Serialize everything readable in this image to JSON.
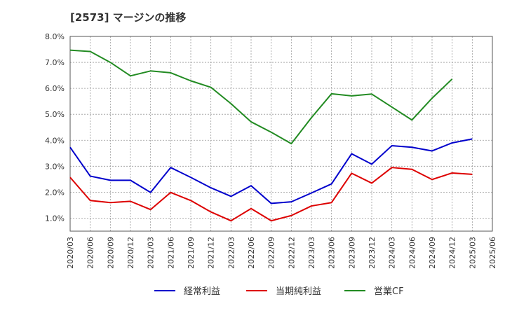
{
  "chart_data": {
    "type": "line",
    "title": "[2573]  マージンの推移",
    "xlabel": "",
    "ylabel": "",
    "ylim": [
      0.5,
      8.0
    ],
    "y_ticks": [
      "1.0%",
      "2.0%",
      "3.0%",
      "4.0%",
      "5.0%",
      "6.0%",
      "7.0%",
      "8.0%"
    ],
    "x": [
      "2020/03",
      "2020/06",
      "2020/09",
      "2020/12",
      "2021/03",
      "2021/06",
      "2021/09",
      "2021/12",
      "2022/03",
      "2022/06",
      "2022/09",
      "2022/12",
      "2023/03",
      "2023/06",
      "2023/09",
      "2023/12",
      "2024/03",
      "2024/06",
      "2024/09",
      "2024/12",
      "2025/03",
      "2025/06"
    ],
    "grid": true,
    "legend_position": "bottom",
    "series": [
      {
        "name": "経常利益",
        "color": "#0000cc",
        "values": [
          3.73,
          2.62,
          2.46,
          2.46,
          1.99,
          2.95,
          2.57,
          2.17,
          1.84,
          2.25,
          1.57,
          1.63,
          1.97,
          2.32,
          3.48,
          3.08,
          3.79,
          3.73,
          3.59,
          3.9,
          4.05,
          null
        ]
      },
      {
        "name": "当期純利益",
        "color": "#dd0000",
        "values": [
          2.57,
          1.68,
          1.6,
          1.65,
          1.33,
          1.99,
          1.68,
          1.24,
          0.9,
          1.37,
          0.9,
          1.1,
          1.47,
          1.6,
          2.73,
          2.35,
          2.95,
          2.88,
          2.49,
          2.74,
          2.69,
          null
        ]
      },
      {
        "name": "営業CF",
        "color": "#228b22",
        "values": [
          7.47,
          7.42,
          7.0,
          6.48,
          6.67,
          6.6,
          6.29,
          6.04,
          5.41,
          4.71,
          4.31,
          3.87,
          4.87,
          5.79,
          5.71,
          5.78,
          5.28,
          4.78,
          5.62,
          6.36,
          null,
          null
        ]
      }
    ]
  }
}
